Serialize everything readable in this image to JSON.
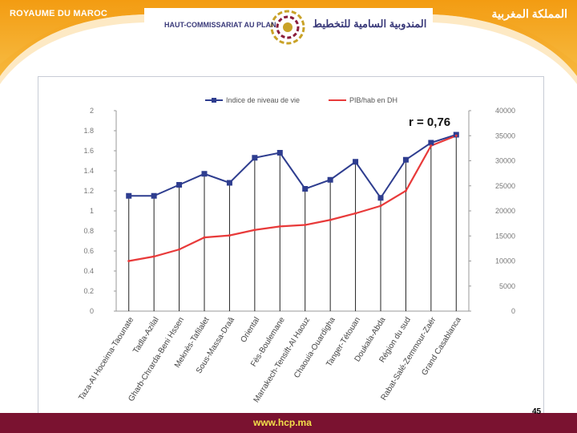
{
  "header": {
    "country_fr": "ROYAUME DU MAROC",
    "country_ar": "المملكة المغربية",
    "agency_fr": "HAUT-COMMISSARIAT AU PLAN",
    "agency_ar": "المندوبية السامية للتخطيط",
    "logo_icon": "hcp-logo-icon",
    "band_color": "#f0a020"
  },
  "footer": {
    "url": "www.hcp.ma",
    "page_number": "45",
    "bar_color": "#7a1230"
  },
  "chart_data": {
    "type": "line",
    "annotation": "r = 0,76",
    "legend_position": "top",
    "grid": "vertical drop lines",
    "categories": [
      "Taza-Al Hoceima-Taounate",
      "Tadla-Azilal",
      "Gharb-Chrarda-Beni Hssen",
      "Meknès-Tafilalet",
      "Sous-Massa-Draâ",
      "Oriental",
      "Fès-Boulemane",
      "Marrakech-Tensift-Al Haouz",
      "Chaouia-Ouardigha",
      "Tanger-Tétouan",
      "Doukala-Abda",
      "Région du sud",
      "Rabat-Salé-Zemmour-Zaër",
      "Grand Casablanca"
    ],
    "y_left": {
      "min": 0,
      "max": 2,
      "ticks": [
        "0",
        "0.2",
        "0.4",
        "0.6",
        "0.8",
        "1",
        "1.2",
        "1.4",
        "1.6",
        "1.8",
        "2"
      ]
    },
    "y_right": {
      "min": 0,
      "max": 40000,
      "ticks": [
        "0",
        "5000",
        "10000",
        "15000",
        "20000",
        "25000",
        "30000",
        "35000",
        "40000"
      ]
    },
    "series": [
      {
        "name": "Indice de niveau de vie",
        "axis": "left",
        "color": "#2e3d8f",
        "marker": "square",
        "values": [
          1.15,
          1.15,
          1.26,
          1.37,
          1.28,
          1.53,
          1.58,
          1.22,
          1.31,
          1.49,
          1.13,
          1.51,
          1.68,
          1.76
        ]
      },
      {
        "name": "PIB/hab en DH",
        "axis": "right",
        "color": "#e83a3a",
        "marker": "none",
        "values": [
          10000,
          10900,
          12300,
          14700,
          15100,
          16200,
          16900,
          17200,
          18200,
          19500,
          21000,
          24000,
          33000,
          35000
        ]
      }
    ]
  }
}
